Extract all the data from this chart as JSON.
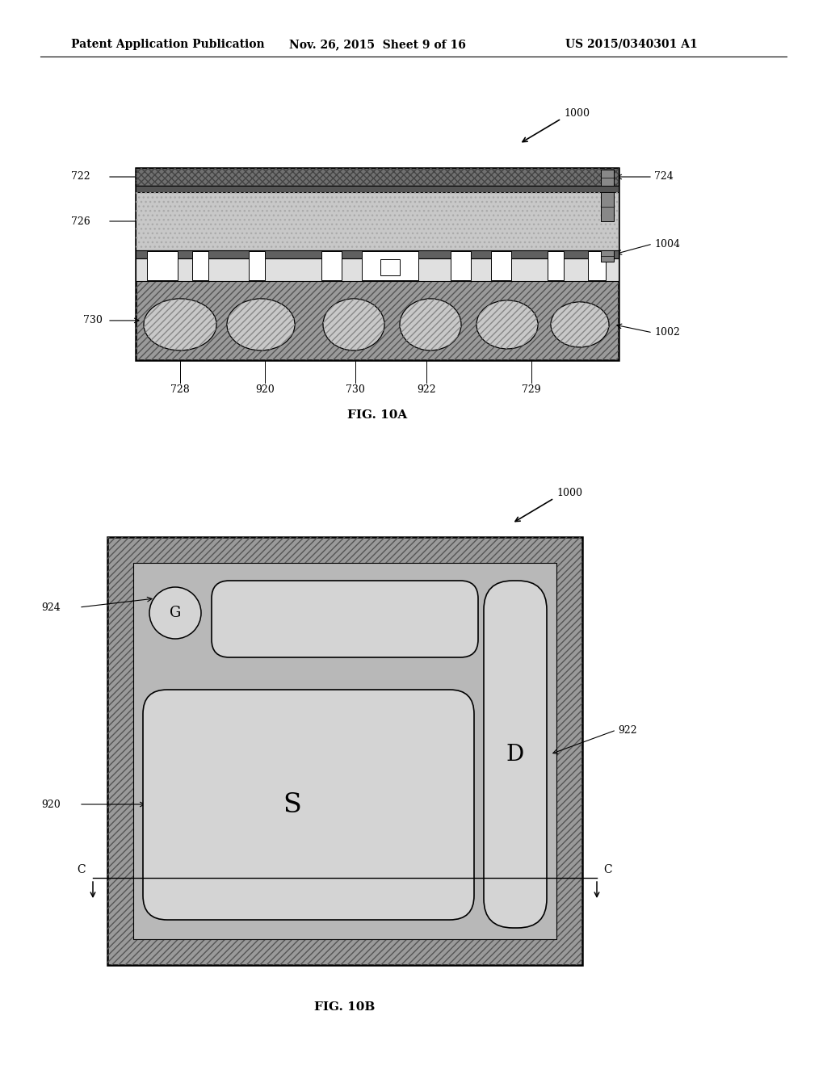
{
  "header_left": "Patent Application Publication",
  "header_mid": "Nov. 26, 2015  Sheet 9 of 16",
  "header_right": "US 2015/0340301 A1",
  "fig10a_label": "FIG. 10A",
  "fig10b_label": "FIG. 10B",
  "bg_color": "#ffffff",
  "outer_mold_color": "#999999",
  "top_layer_color": "#787878",
  "mid_layer_color": "#c0c0c0",
  "die_color": "#d8d8d8",
  "pad_color": "#ffffff",
  "ball_color": "#c8c8c8",
  "inner_bg_color": "#b0b0b0",
  "spad_color": "#d0d0d0",
  "dpad_color": "#d0d0d0",
  "gpad_color": "#d0d0d0",
  "label_fs": 9,
  "fig_label_fs": 11,
  "header_fs": 10
}
